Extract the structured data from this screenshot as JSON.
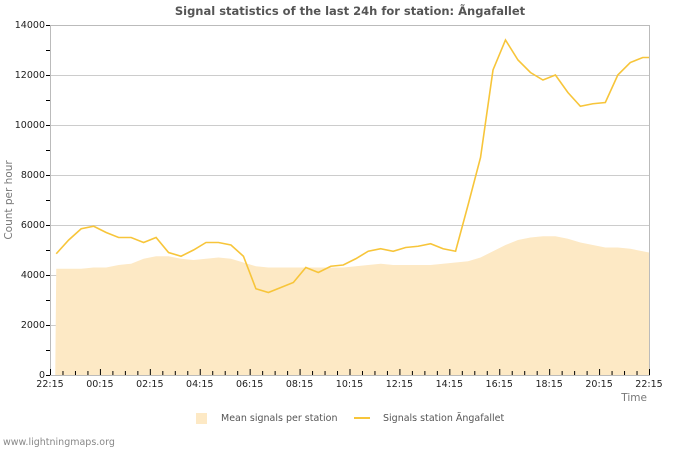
{
  "title": "Signal statistics of the last 24h for station: Ãngafallet",
  "footer": "www.lightningmaps.org",
  "legend": {
    "mean": "Mean signals per station",
    "station": "Signals station Ãngafallet"
  },
  "colors": {
    "mean_area": "#fde9c5",
    "station_line": "#f7c53a",
    "grid": "#cccccc",
    "axis": "#bbbbbb"
  },
  "chart_data": {
    "type": "line",
    "title": "Signal statistics of the last 24h for station: Ãngafallet",
    "xlabel": "Time",
    "ylabel": "Count per hour",
    "ylim": [
      0,
      14000
    ],
    "yticks": [
      0,
      2000,
      4000,
      6000,
      8000,
      10000,
      12000,
      14000
    ],
    "xtick_labels": [
      "22:15",
      "00:15",
      "02:15",
      "04:15",
      "06:15",
      "08:15",
      "10:15",
      "12:15",
      "14:15",
      "16:15",
      "18:15",
      "20:15",
      "22:15"
    ],
    "grid": true,
    "legend_position": "bottom",
    "x": [
      "22:30",
      "23:00",
      "23:30",
      "00:00",
      "00:30",
      "01:00",
      "01:30",
      "02:00",
      "02:30",
      "03:00",
      "03:30",
      "04:00",
      "04:30",
      "05:00",
      "05:30",
      "06:00",
      "06:30",
      "07:00",
      "07:30",
      "08:00",
      "08:30",
      "09:00",
      "09:30",
      "10:00",
      "10:30",
      "11:00",
      "11:30",
      "12:00",
      "12:30",
      "13:00",
      "13:30",
      "14:00",
      "14:30",
      "15:00",
      "15:30",
      "16:00",
      "16:30",
      "17:00",
      "17:30",
      "18:00",
      "18:30",
      "19:00",
      "19:30",
      "20:00",
      "20:30",
      "21:00",
      "21:30",
      "22:00",
      "22:15"
    ],
    "series": [
      {
        "name": "Mean signals per station",
        "kind": "area",
        "values": [
          4250,
          4250,
          4250,
          4300,
          4300,
          4400,
          4450,
          4650,
          4750,
          4750,
          4650,
          4600,
          4650,
          4700,
          4650,
          4500,
          4350,
          4300,
          4300,
          4300,
          4300,
          4300,
          4300,
          4300,
          4350,
          4400,
          4450,
          4400,
          4400,
          4400,
          4400,
          4450,
          4500,
          4550,
          4700,
          4950,
          5200,
          5400,
          5500,
          5550,
          5550,
          5450,
          5300,
          5200,
          5100,
          5100,
          5050,
          4950,
          4900
        ]
      },
      {
        "name": "Signals station Ãngafallet",
        "kind": "line",
        "values": [
          4850,
          5400,
          5850,
          5950,
          5700,
          5500,
          5500,
          5300,
          5500,
          4900,
          4750,
          5000,
          5300,
          5300,
          5200,
          4750,
          3450,
          3300,
          3500,
          3700,
          4300,
          4100,
          4350,
          4400,
          4650,
          4950,
          5050,
          4950,
          5100,
          5150,
          5250,
          5050,
          4950,
          6800,
          8700,
          12200,
          13400,
          12600,
          12100,
          11800,
          12000,
          11300,
          10750,
          10850,
          10900,
          12000,
          12500,
          12700,
          12700
        ]
      }
    ]
  }
}
